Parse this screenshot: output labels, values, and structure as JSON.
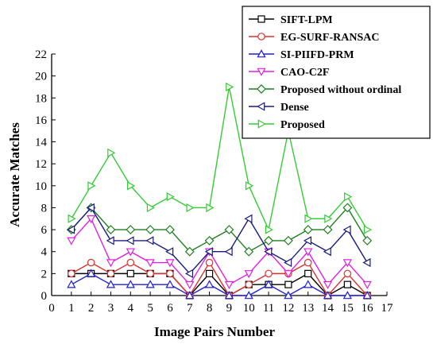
{
  "chart_data": {
    "type": "line",
    "xlabel": "Image Pairs Number",
    "ylabel": "Accurate Matches",
    "xlim": [
      0,
      17
    ],
    "ylim": [
      0,
      22
    ],
    "xticks": [
      0,
      1,
      2,
      3,
      4,
      5,
      6,
      7,
      8,
      9,
      10,
      11,
      12,
      13,
      14,
      15,
      16,
      17
    ],
    "yticks": [
      0,
      2,
      4,
      6,
      8,
      10,
      12,
      14,
      16,
      18,
      20,
      22
    ],
    "grid": false,
    "legend_position": "top-right",
    "x": [
      1,
      2,
      3,
      4,
      5,
      6,
      7,
      8,
      9,
      10,
      11,
      12,
      13,
      14,
      15,
      16
    ],
    "series": [
      {
        "name": "SIFT-LPM",
        "marker": "square",
        "color": "#000000",
        "values": [
          2,
          2,
          2,
          2,
          2,
          2,
          0,
          2,
          0,
          1,
          1,
          1,
          2,
          0,
          1,
          0
        ]
      },
      {
        "name": "EG-SURF-RANSAC",
        "marker": "circle",
        "color": "#d9322e",
        "values": [
          2,
          3,
          2,
          3,
          2,
          2,
          0,
          3,
          0,
          1,
          2,
          2,
          3,
          0,
          2,
          0
        ]
      },
      {
        "name": "SI-PIIFD-PRM",
        "marker": "triangle-up",
        "color": "#1f1fd6",
        "values": [
          1,
          2,
          1,
          1,
          1,
          1,
          0,
          1,
          0,
          0,
          1,
          0,
          1,
          0,
          0,
          0
        ]
      },
      {
        "name": "CAO-C2F",
        "marker": "triangle-down",
        "color": "#e020e0",
        "values": [
          5,
          7,
          3,
          4,
          3,
          3,
          1,
          4,
          1,
          2,
          4,
          2,
          4,
          1,
          3,
          1
        ]
      },
      {
        "name": "Proposed without ordinal",
        "marker": "diamond",
        "color": "#1e7f1e",
        "values": [
          6,
          8,
          6,
          6,
          6,
          6,
          4,
          5,
          6,
          4,
          5,
          5,
          6,
          6,
          8,
          5
        ]
      },
      {
        "name": "Dense",
        "marker": "triangle-left",
        "color": "#1a1a80",
        "values": [
          6,
          8,
          5,
          5,
          5,
          4,
          2,
          4,
          4,
          7,
          4,
          3,
          5,
          4,
          6,
          3
        ]
      },
      {
        "name": "Proposed",
        "marker": "triangle-right",
        "color": "#33cc33",
        "values": [
          7,
          10,
          13,
          10,
          8,
          9,
          8,
          8,
          19,
          10,
          6,
          15,
          7,
          7,
          9,
          6
        ]
      }
    ]
  }
}
